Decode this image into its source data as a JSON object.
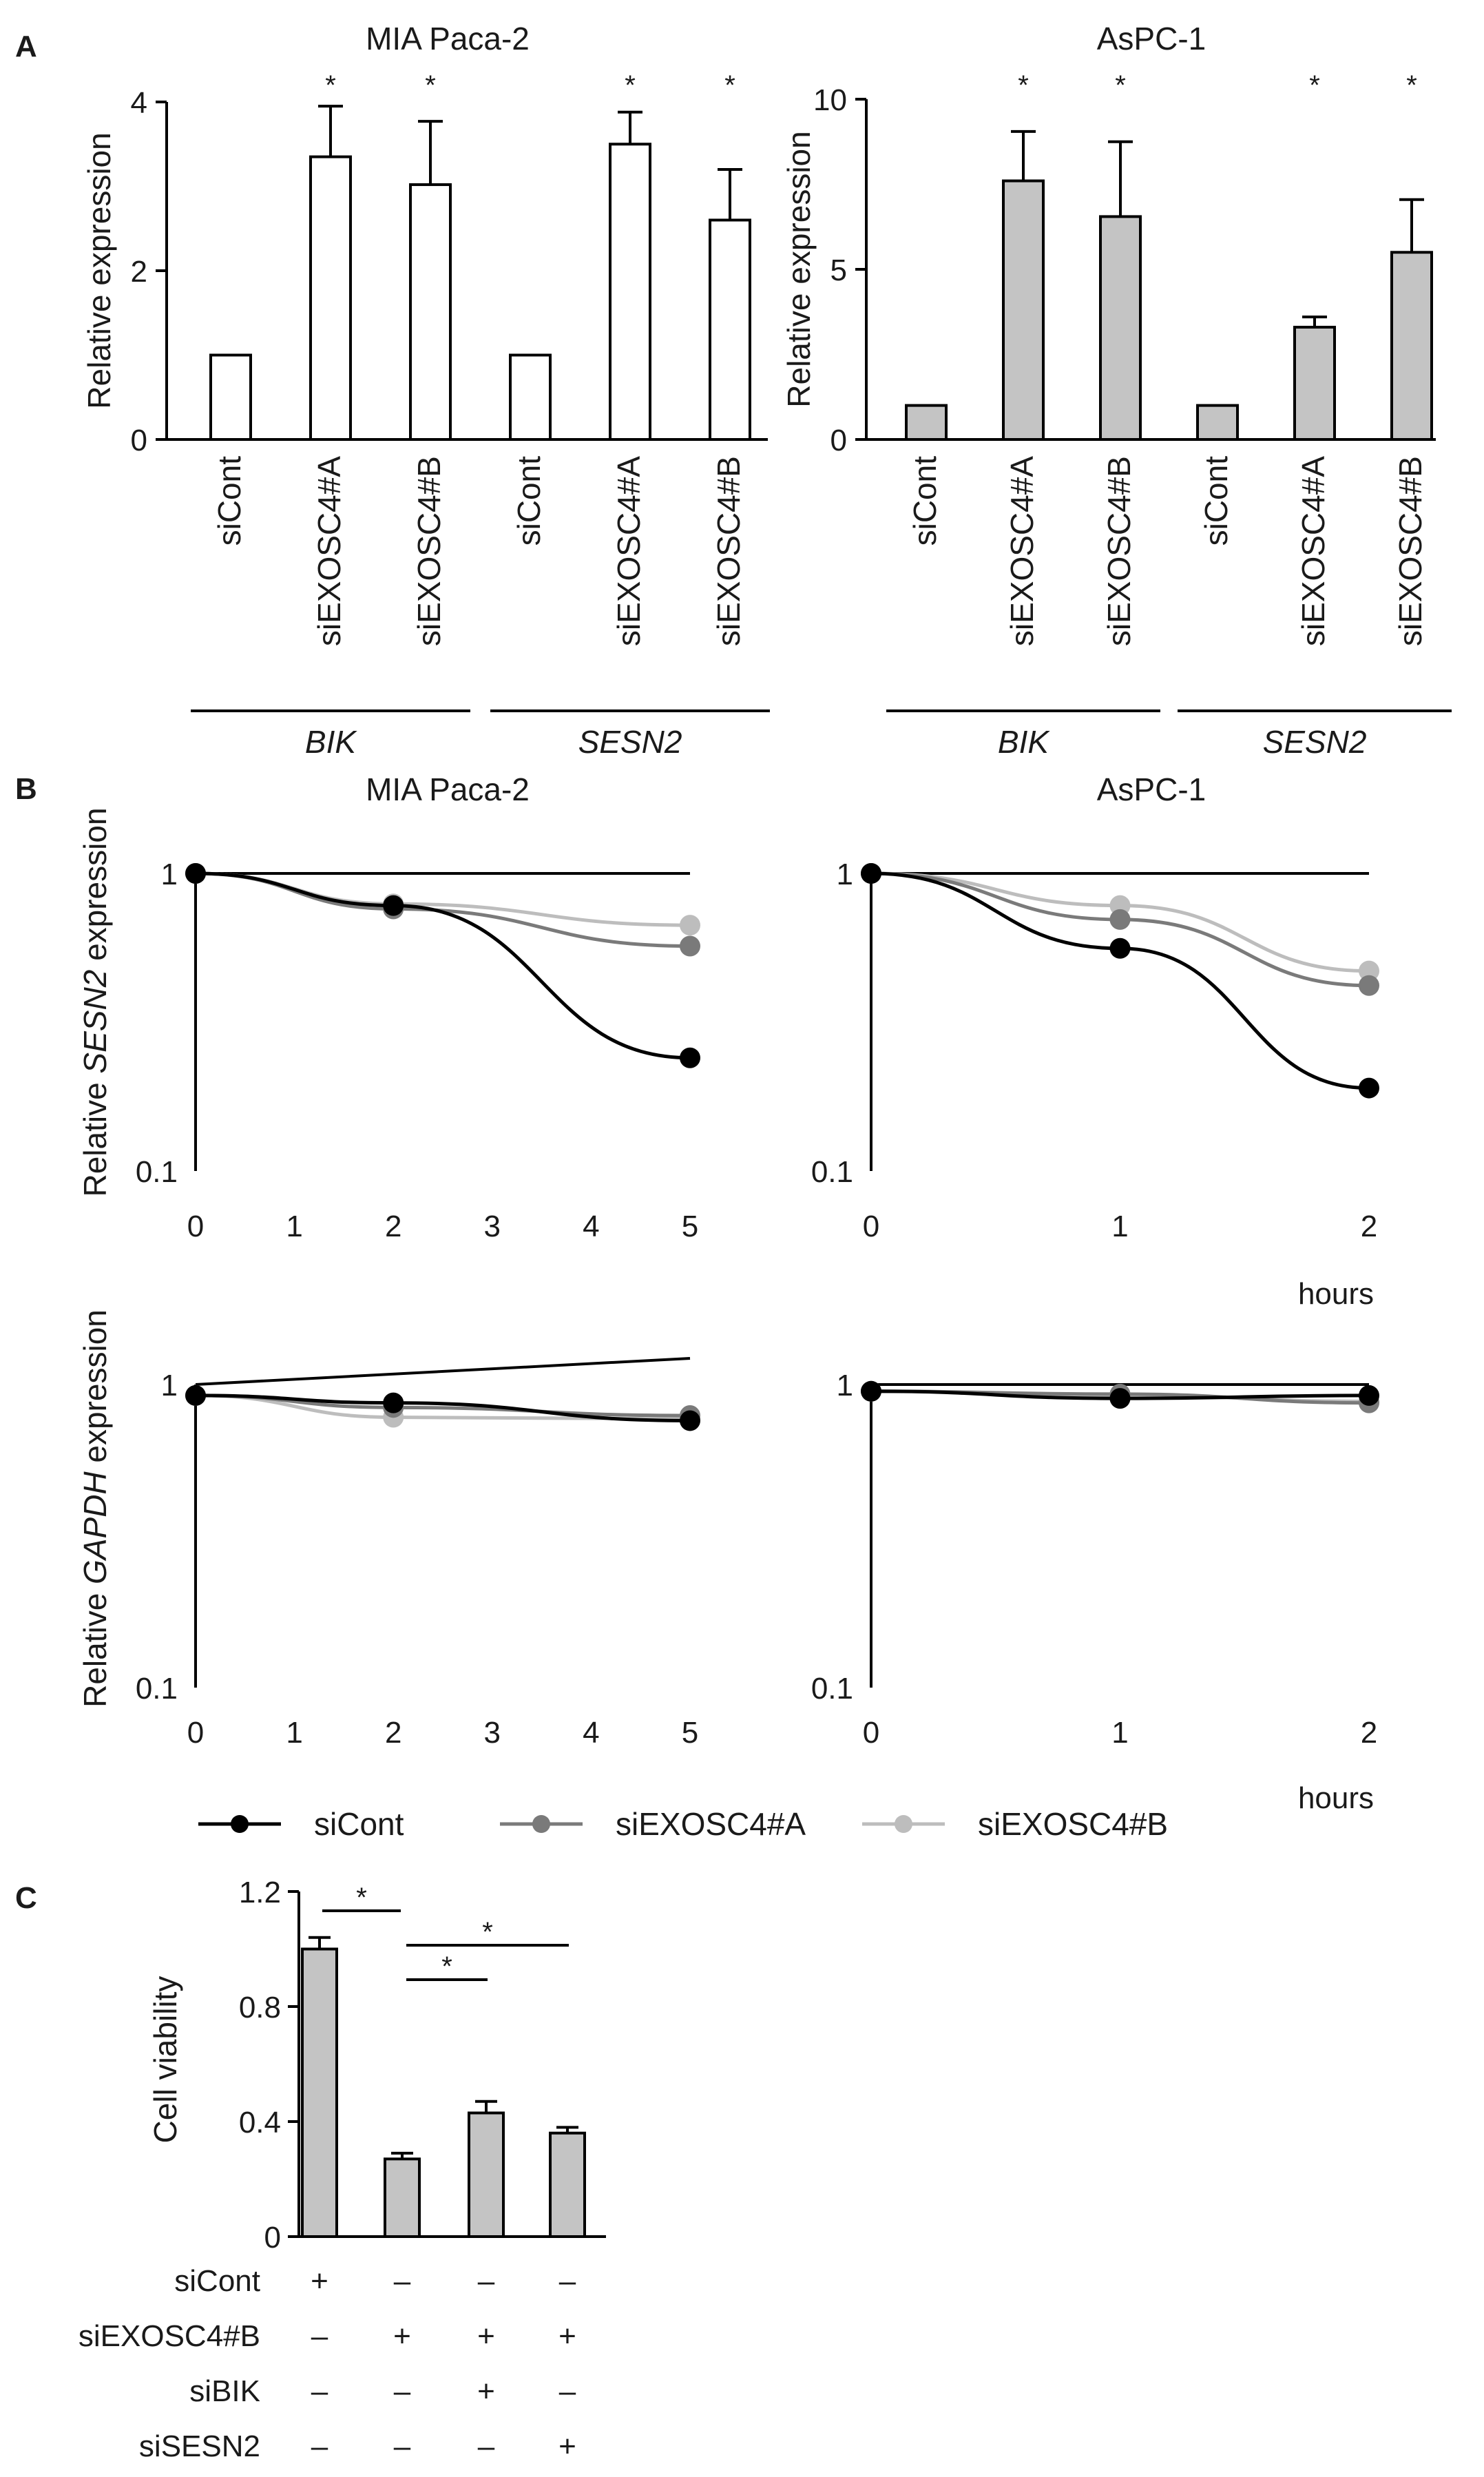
{
  "panels": {
    "A": "A",
    "B": "B",
    "C": "C"
  },
  "colors": {
    "axis": "#000000",
    "bar_white": "#ffffff",
    "bar_gray": "#c4c4c4",
    "siCont": "#000000",
    "siEXOSC4A": "#7a7a7a",
    "siEXOSC4B": "#bdbdbd"
  },
  "star": "*",
  "hours_label": "hours",
  "legend": [
    "siCont",
    "siEXOSC4#A",
    "siEXOSC4#B"
  ],
  "chart_data": [
    {
      "id": "A1",
      "type": "bar",
      "title": "MIA Paca-2",
      "ylabel": "Relative expression",
      "ylim": [
        0,
        4
      ],
      "yticks": [
        "0",
        "2",
        "4"
      ],
      "categories": [
        "siCont",
        "siEXOSC4#A",
        "siEXOSC4#B",
        "siCont",
        "siEXOSC4#A",
        "siEXOSC4#B"
      ],
      "groups": [
        "BIK",
        "SESN2"
      ],
      "values": [
        1.0,
        3.35,
        3.02,
        1.0,
        3.5,
        2.6
      ],
      "errors": [
        0,
        0.6,
        0.75,
        0,
        0.38,
        0.6
      ],
      "significant": [
        false,
        true,
        true,
        false,
        true,
        true
      ]
    },
    {
      "id": "A2",
      "type": "bar",
      "title": "AsPC-1",
      "ylabel": "Relative expression",
      "ylim": [
        0,
        10
      ],
      "yticks": [
        "0",
        "5",
        "10"
      ],
      "categories": [
        "siCont",
        "siEXOSC4#A",
        "siEXOSC4#B",
        "siCont",
        "siEXOSC4#A",
        "siEXOSC4#B"
      ],
      "groups": [
        "BIK",
        "SESN2"
      ],
      "values": [
        1.0,
        7.6,
        6.55,
        1.0,
        3.3,
        5.5
      ],
      "errors": [
        0,
        1.45,
        2.2,
        0,
        0.3,
        1.55
      ],
      "significant": [
        false,
        true,
        true,
        false,
        true,
        true
      ]
    },
    {
      "id": "B1",
      "type": "line",
      "title": "MIA Paca-2",
      "ylabel_pre": "Relative ",
      "ylabel_it": "SESN2",
      "ylabel_post": " expression",
      "yscale": "log",
      "ylim": [
        0.1,
        1
      ],
      "yticks": [
        "0.1",
        "1"
      ],
      "xlim": [
        0,
        5
      ],
      "x": [
        0,
        2,
        5
      ],
      "xticks": [
        "0",
        "1",
        "2",
        "3",
        "4",
        "5"
      ],
      "series": [
        {
          "name": "siCont",
          "values": [
            1.0,
            0.78,
            0.24
          ]
        },
        {
          "name": "siEXOSC4#A",
          "values": [
            1.0,
            0.76,
            0.57
          ]
        },
        {
          "name": "siEXOSC4#B",
          "values": [
            1.0,
            0.79,
            0.67
          ]
        }
      ]
    },
    {
      "id": "B2",
      "type": "line",
      "title": "AsPC-1",
      "yscale": "log",
      "ylim": [
        0.1,
        1
      ],
      "yticks": [
        "0.1",
        "1"
      ],
      "xlim": [
        0,
        2
      ],
      "x": [
        0,
        1,
        2
      ],
      "xticks": [
        "0",
        "1",
        "2"
      ],
      "series": [
        {
          "name": "siCont",
          "values": [
            1.0,
            0.56,
            0.19
          ]
        },
        {
          "name": "siEXOSC4#A",
          "values": [
            1.0,
            0.7,
            0.42
          ]
        },
        {
          "name": "siEXOSC4#B",
          "values": [
            1.0,
            0.78,
            0.47
          ]
        }
      ]
    },
    {
      "id": "B3",
      "type": "line",
      "title": "",
      "ylabel_pre": "Relative ",
      "ylabel_it": "GAPDH",
      "ylabel_post": " expression",
      "yscale": "log",
      "ylim": [
        0.1,
        1
      ],
      "yticks": [
        "0.1",
        "1"
      ],
      "xlim": [
        0,
        5
      ],
      "x": [
        0,
        2,
        5
      ],
      "xticks": [
        "0",
        "1",
        "2",
        "3",
        "4",
        "5"
      ],
      "series": [
        {
          "name": "siCont",
          "values": [
            0.92,
            0.87,
            0.76
          ]
        },
        {
          "name": "siEXOSC4#A",
          "values": [
            0.92,
            0.84,
            0.79
          ]
        },
        {
          "name": "siEXOSC4#B",
          "values": [
            0.92,
            0.78,
            0.77
          ]
        }
      ]
    },
    {
      "id": "B4",
      "type": "line",
      "title": "",
      "yscale": "log",
      "ylim": [
        0.1,
        1
      ],
      "yticks": [
        "0.1",
        "1"
      ],
      "xlim": [
        0,
        2
      ],
      "x": [
        0,
        1,
        2
      ],
      "xticks": [
        "0",
        "1",
        "2"
      ],
      "series": [
        {
          "name": "siCont",
          "values": [
            0.95,
            0.9,
            0.92
          ]
        },
        {
          "name": "siEXOSC4#A",
          "values": [
            0.95,
            0.93,
            0.87
          ]
        },
        {
          "name": "siEXOSC4#B",
          "values": [
            0.95,
            0.92,
            0.88
          ]
        }
      ]
    },
    {
      "id": "C",
      "type": "bar",
      "ylabel": "Cell viability",
      "ylim": [
        0,
        1.2
      ],
      "yticks": [
        "0",
        "0.4",
        "0.8",
        "1.2"
      ],
      "values": [
        1.0,
        0.27,
        0.43,
        0.36
      ],
      "errors": [
        0.04,
        0.02,
        0.04,
        0.02
      ],
      "conditions": [
        {
          "label": "siCont",
          "marks": [
            "+",
            "–",
            "–",
            "–"
          ]
        },
        {
          "label": "siEXOSC4#B",
          "marks": [
            "–",
            "+",
            "+",
            "+"
          ]
        },
        {
          "label": "siBIK",
          "marks": [
            "–",
            "–",
            "+",
            "–"
          ]
        },
        {
          "label": "siSESN2",
          "marks": [
            "–",
            "–",
            "–",
            "+"
          ]
        }
      ],
      "comparisons": [
        [
          0,
          1
        ],
        [
          1,
          2
        ],
        [
          1,
          3
        ]
      ]
    }
  ]
}
